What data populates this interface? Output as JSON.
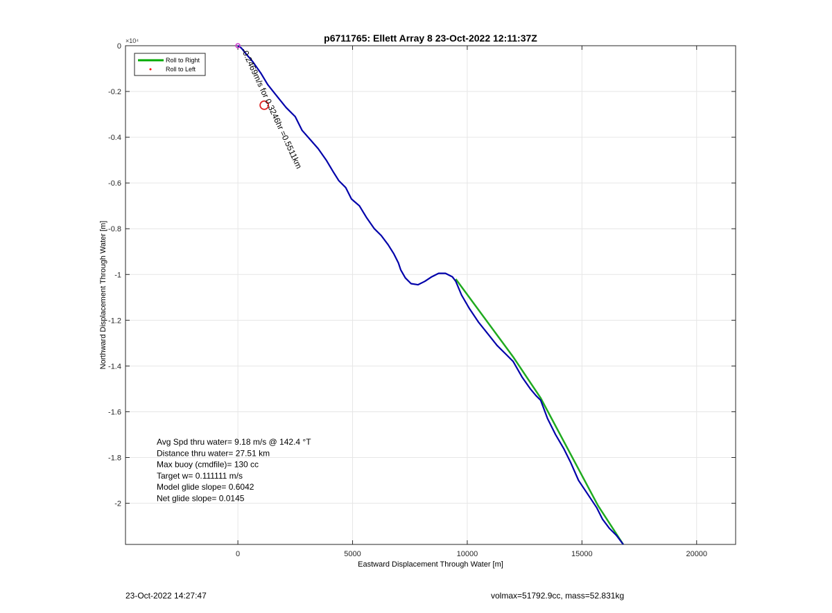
{
  "footer": {
    "left": "23-Oct-2022 14:27:47",
    "right": "volmax=51792.9cc, mass=52.831kg"
  },
  "chart_data": {
    "type": "line",
    "title": "p6711765: Ellett Array 8 23-Oct-2022 12:11:37Z",
    "xlabel": "Eastward Displacement Through Water [m]",
    "ylabel": "Northward Displacement Through Water [m]",
    "y_exponent": "×10⁴",
    "xlim": [
      -4900,
      21700
    ],
    "ylim": [
      -2.18,
      0
    ],
    "xticks": [
      0,
      5000,
      10000,
      15000,
      20000
    ],
    "xticklabels": [
      "0",
      "5000",
      "10000",
      "15000",
      "20000"
    ],
    "yticks": [
      0,
      -0.2,
      -0.4,
      -0.6,
      -0.8,
      -1,
      -1.2,
      -1.4,
      -1.6,
      -1.8,
      -2
    ],
    "yticklabels": [
      "0",
      "-0.2",
      "-0.4",
      "-0.6",
      "-0.8",
      "-1",
      "-1.2",
      "-1.4",
      "-1.6",
      "-1.8",
      "-2"
    ],
    "grid": true,
    "legend_position": "top-left",
    "legend": [
      {
        "label": "Roll to Right",
        "color": "#00aa00",
        "marker": "line"
      },
      {
        "label": "Roll to Left",
        "color": "#ff0000",
        "marker": "dot"
      }
    ],
    "series": [
      {
        "name": "Roll to Right",
        "color": "#1faa1f",
        "x": [
          9500,
          12000,
          13200,
          15700,
          16800
        ],
        "y": [
          -1.02,
          -1.36,
          -1.54,
          -2.01,
          -2.18
        ]
      },
      {
        "color": "#0000aa",
        "x": [
          0,
          150,
          350,
          650,
          1000,
          1300,
          1700,
          2100,
          2500,
          2800,
          3150,
          3500,
          3850,
          4150,
          4400,
          4700,
          4950,
          5300,
          5600,
          5950,
          6250,
          6550,
          6800,
          7000,
          7100,
          7300,
          7550,
          7850,
          8150,
          8450,
          8750,
          9050,
          9350,
          9500,
          9750,
          10100,
          10500,
          10900,
          11300,
          11700,
          12000,
          12400,
          12750,
          13000,
          13200,
          13500,
          13850,
          14200,
          14500,
          14850,
          15250,
          15650,
          15900,
          16200,
          16500,
          16800
        ],
        "y": [
          0,
          -0.01,
          -0.035,
          -0.07,
          -0.12,
          -0.17,
          -0.22,
          -0.27,
          -0.31,
          -0.37,
          -0.41,
          -0.45,
          -0.5,
          -0.55,
          -0.59,
          -0.62,
          -0.67,
          -0.7,
          -0.75,
          -0.8,
          -0.83,
          -0.87,
          -0.91,
          -0.95,
          -0.98,
          -1.015,
          -1.04,
          -1.045,
          -1.03,
          -1.01,
          -0.995,
          -0.995,
          -1.01,
          -1.03,
          -1.09,
          -1.15,
          -1.21,
          -1.26,
          -1.31,
          -1.35,
          -1.38,
          -1.45,
          -1.5,
          -1.53,
          -1.55,
          -1.63,
          -1.7,
          -1.76,
          -1.82,
          -1.9,
          -1.96,
          -2.02,
          -2.07,
          -2.11,
          -2.14,
          -2.18
        ]
      }
    ],
    "annotations": [
      {
        "text": "Avg Spd thru water=  9.18 m/s @ 142.4 °T"
      },
      {
        "text": "Distance thru water= 27.51 km"
      },
      {
        "text": "Max buoy (cmdfile)= 130 cc"
      },
      {
        "text": "Target w= 0.111111 m/s"
      },
      {
        "text": "Model glide slope= 0.6042"
      },
      {
        "text": "Net glide slope= 0.0145"
      }
    ],
    "rotated_label": "-0.2469m/s for 0.3246hr =0.5511km",
    "red_circle": {
      "x": 1150,
      "y": -0.26
    },
    "magenta_marker": {
      "x": 0,
      "y": 0
    }
  }
}
